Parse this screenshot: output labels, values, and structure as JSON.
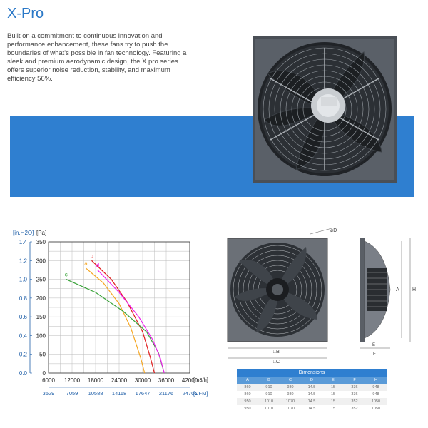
{
  "title": "X-Pro",
  "intro": "Built on a commitment to continuous innovation and performance enhancement, these fans try to push the boundaries of what's possible in fan technology. Featuring a sleek and premium aerodynamic design, the X pro series offers superior noise reduction, stability, and maximum efficiency 56%.",
  "colors": {
    "accent": "#2f7fd0",
    "title": "#2a78c7"
  },
  "chart_data": {
    "type": "line",
    "ylabel_left": "[in.H2O]",
    "ylabel_right": "[Pa]",
    "xunit_top": "[m3/h]",
    "xunit_bottom": "[CFM]",
    "xlim": [
      6000,
      42000
    ],
    "ylim": [
      0,
      350
    ],
    "x_ticks": [
      "6000",
      "12000",
      "18000",
      "24000",
      "30000",
      "36000",
      "42000"
    ],
    "x_ticks_cfm": [
      "3529",
      "7059",
      "10588",
      "14118",
      "17647",
      "21176",
      "24706"
    ],
    "y_ticks_pa": [
      "0",
      "50",
      "100",
      "150",
      "200",
      "250",
      "300",
      "350"
    ],
    "y_ticks_inh2o": [
      "0.0",
      "0.2",
      "0.4",
      "0.6",
      "0.8",
      "1.0",
      "1.2",
      "1.4"
    ],
    "series": [
      {
        "name": "a",
        "color": "#f5a623",
        "points": [
          [
            15500,
            280
          ],
          [
            20000,
            240
          ],
          [
            24000,
            185
          ],
          [
            27000,
            120
          ],
          [
            29500,
            40
          ],
          [
            30500,
            0
          ]
        ]
      },
      {
        "name": "b",
        "color": "#e01919",
        "points": [
          [
            17000,
            300
          ],
          [
            22000,
            250
          ],
          [
            26000,
            190
          ],
          [
            30000,
            110
          ],
          [
            32000,
            40
          ],
          [
            33000,
            0
          ]
        ]
      },
      {
        "name": "c",
        "color": "#3aa33a",
        "points": [
          [
            10500,
            250
          ],
          [
            18000,
            215
          ],
          [
            25000,
            165
          ],
          [
            31000,
            110
          ],
          [
            34000,
            55
          ],
          [
            35500,
            0
          ]
        ]
      },
      {
        "name": "d",
        "color": "#ee22ee",
        "points": [
          [
            18500,
            275
          ],
          [
            24000,
            215
          ],
          [
            29000,
            150
          ],
          [
            32500,
            90
          ],
          [
            34500,
            40
          ],
          [
            35500,
            0
          ]
        ]
      }
    ]
  },
  "drawing_labels": {
    "front_diameter": "⌀D",
    "front_width_inner": "□B",
    "front_width_outer": "□C",
    "side_h": "H",
    "side_a": "A",
    "side_e": "E",
    "side_f": "F"
  },
  "dimensions": {
    "caption": "Dimensions",
    "headers": [
      "A",
      "B",
      "C",
      "D",
      "E",
      "F",
      "H"
    ],
    "rows": [
      [
        "860",
        "910",
        "930",
        "14.5",
        "15",
        "336",
        "948"
      ],
      [
        "860",
        "910",
        "930",
        "14.5",
        "15",
        "336",
        "948"
      ],
      [
        "950",
        "1010",
        "1070",
        "14.5",
        "15",
        "352",
        "1050"
      ],
      [
        "950",
        "1010",
        "1070",
        "14.5",
        "15",
        "352",
        "1050"
      ]
    ]
  }
}
